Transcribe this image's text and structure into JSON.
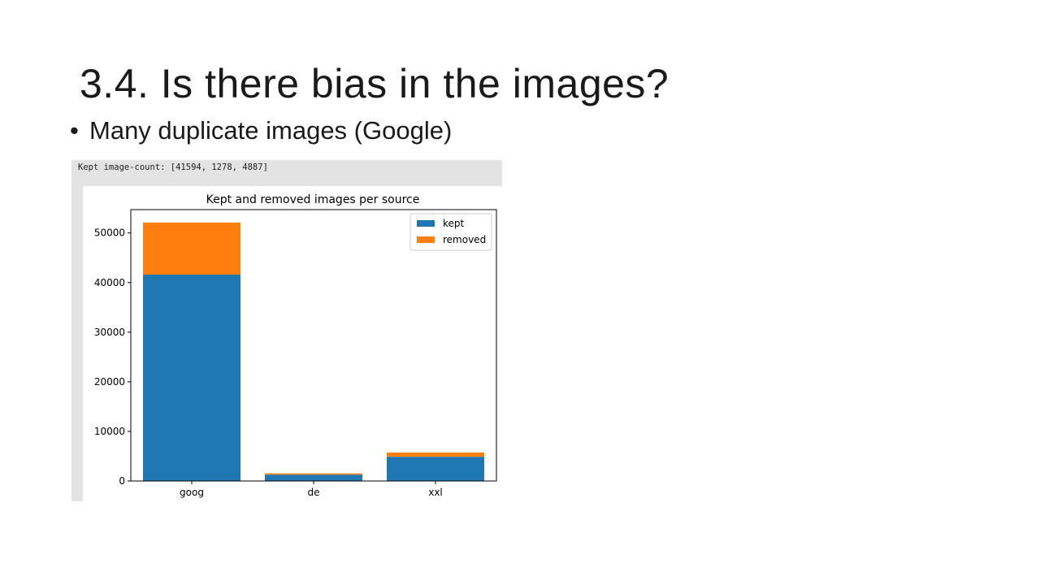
{
  "slide": {
    "title": "3.4. Is there bias in the images?",
    "bullet_glyph": "•",
    "bullet": "Many duplicate images (Google)"
  },
  "output": {
    "code_text": "Kept image-count: [41594, 1278, 4887]"
  },
  "colors": {
    "kept": "#1f77b4",
    "removed": "#ff7f0e"
  },
  "chart_data": {
    "type": "bar",
    "stacked": true,
    "title": "Kept and removed images per source",
    "xlabel": "",
    "ylabel": "",
    "categories": [
      "goog",
      "de",
      "xxl"
    ],
    "series": [
      {
        "name": "kept",
        "values": [
          41594,
          1278,
          4887
        ]
      },
      {
        "name": "removed",
        "values": [
          10500,
          250,
          850
        ]
      }
    ],
    "ylim": [
      0,
      54700
    ],
    "yticks": [
      0,
      10000,
      20000,
      30000,
      40000,
      50000
    ],
    "ytick_labels": [
      "0",
      "10000",
      "20000",
      "30000",
      "40000",
      "50000"
    ],
    "grid": false,
    "legend": "upper right"
  }
}
